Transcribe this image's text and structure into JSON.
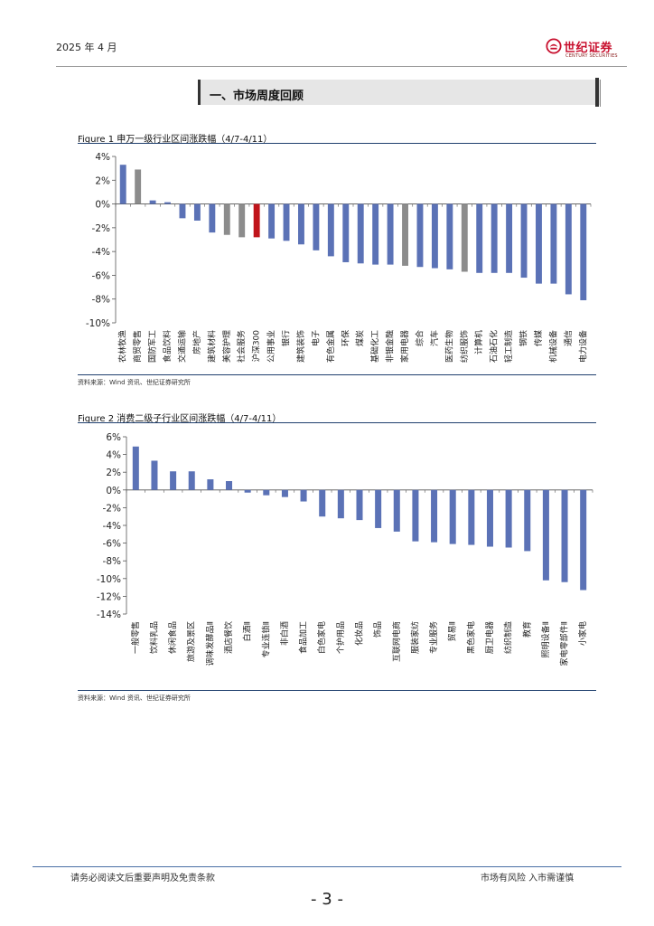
{
  "header": {
    "date": "2025 年 4 月",
    "logo_cn": "世纪证券",
    "logo_en": "CENTURY SECURITIES"
  },
  "section": {
    "title": "一、市场周度回顾"
  },
  "figure1": {
    "title": "Figure 1  申万一级行业区间涨跌幅（4/7-4/11）",
    "source": "资料来源：Wind 资讯、世纪证券研究所"
  },
  "figure2": {
    "title": "Figure 2  消费二级子行业区间涨跌幅（4/7-4/11）",
    "source": "资料来源：Wind 资讯、世纪证券研究所"
  },
  "colors": {
    "blue": "#5b72b6",
    "gray": "#8c8c8c",
    "red": "#c0141b"
  },
  "chart_data": [
    {
      "type": "bar",
      "title": "申万一级行业区间涨跌幅（4/7-4/11）",
      "ylim": [
        -10,
        4
      ],
      "yticks": [
        4,
        2,
        0,
        -2,
        -4,
        -6,
        -8,
        -10
      ],
      "ytick_labels": [
        "4%",
        "2%",
        "0%",
        "-2%",
        "-4%",
        "-6%",
        "-8%",
        "-10%"
      ],
      "grid": false,
      "categories": [
        "农林牧渔",
        "商贸零售",
        "国防军工",
        "食品饮料",
        "交通运输",
        "房地产",
        "建筑材料",
        "美容护理",
        "社会服务",
        "沪深300",
        "公用事业",
        "银行",
        "建筑装饰",
        "电子",
        "有色金属",
        "环保",
        "煤炭",
        "基础化工",
        "非银金融",
        "家用电器",
        "综合",
        "汽车",
        "医药生物",
        "纺织服饰",
        "计算机",
        "石油石化",
        "轻工制造",
        "钢铁",
        "传媒",
        "机械设备",
        "通信",
        "电力设备"
      ],
      "values": [
        3.3,
        2.9,
        0.3,
        0.15,
        -1.2,
        -1.4,
        -2.4,
        -2.6,
        -2.8,
        -2.8,
        -2.9,
        -3.1,
        -3.4,
        -3.9,
        -4.4,
        -4.9,
        -5.0,
        -5.1,
        -5.1,
        -5.2,
        -5.3,
        -5.4,
        -5.5,
        -5.7,
        -5.8,
        -5.8,
        -5.8,
        -6.2,
        -6.7,
        -6.7,
        -7.6,
        -8.1
      ],
      "colors": [
        "blue",
        "gray",
        "blue",
        "blue",
        "blue",
        "blue",
        "blue",
        "gray",
        "gray",
        "red",
        "blue",
        "blue",
        "blue",
        "blue",
        "blue",
        "blue",
        "blue",
        "blue",
        "blue",
        "gray",
        "blue",
        "blue",
        "blue",
        "gray",
        "blue",
        "blue",
        "blue",
        "blue",
        "blue",
        "blue",
        "blue",
        "blue"
      ]
    },
    {
      "type": "bar",
      "title": "消费二级子行业区间涨跌幅（4/7-4/11）",
      "ylim": [
        -14,
        6
      ],
      "yticks": [
        6,
        4,
        2,
        0,
        -2,
        -4,
        -6,
        -8,
        -10,
        -12,
        -14
      ],
      "ytick_labels": [
        "6%",
        "4%",
        "2%",
        "0%",
        "-2%",
        "-4%",
        "-6%",
        "-8%",
        "-10%",
        "-12%",
        "-14%"
      ],
      "grid": false,
      "categories": [
        "一般零售",
        "饮料乳品",
        "休闲食品",
        "旅游及景区",
        "调味发酵品Ⅱ",
        "酒店餐饮",
        "白酒Ⅱ",
        "专业连锁Ⅱ",
        "非白酒",
        "食品加工",
        "白色家电",
        "个护用品",
        "化妆品",
        "饰品",
        "互联网电商",
        "服装家纺",
        "专业服务",
        "贸易Ⅱ",
        "黑色家电",
        "厨卫电器",
        "纺织制造",
        "教育",
        "照明设备Ⅱ",
        "家电零部件Ⅱ",
        "小家电"
      ],
      "values": [
        4.9,
        3.3,
        2.1,
        2.1,
        1.2,
        1.0,
        -0.3,
        -0.6,
        -0.8,
        -1.3,
        -3.0,
        -3.2,
        -3.4,
        -4.3,
        -4.7,
        -5.8,
        -5.9,
        -6.1,
        -6.2,
        -6.4,
        -6.5,
        -6.9,
        -10.2,
        -10.4,
        -11.3
      ],
      "colors": [
        "blue",
        "blue",
        "blue",
        "blue",
        "blue",
        "blue",
        "blue",
        "blue",
        "blue",
        "blue",
        "blue",
        "blue",
        "blue",
        "blue",
        "blue",
        "blue",
        "blue",
        "blue",
        "blue",
        "blue",
        "blue",
        "blue",
        "blue",
        "blue",
        "blue"
      ]
    }
  ],
  "footer": {
    "left": "请务必阅读文后重要声明及免责条款",
    "right": "市场有风险  入市需谨慎",
    "page": "- 3 -"
  }
}
